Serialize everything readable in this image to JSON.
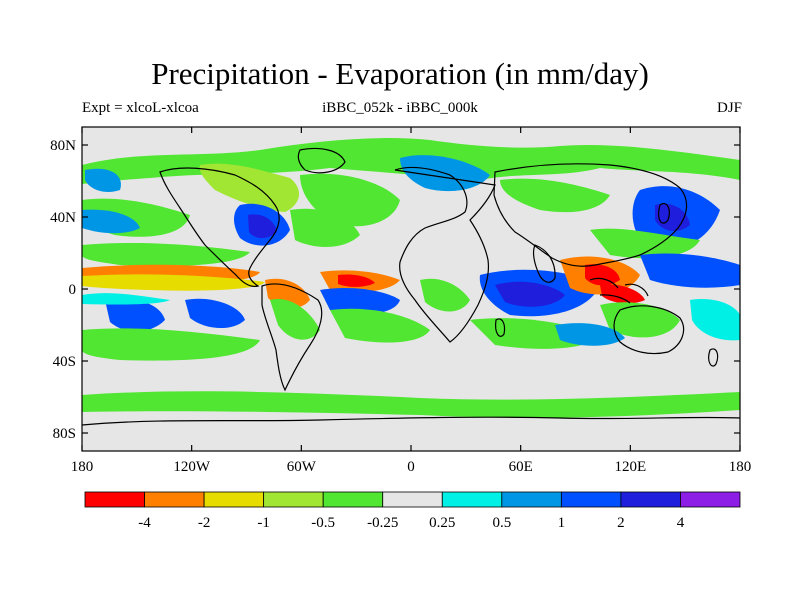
{
  "title": "Precipitation - Evaporation (in mm/day)",
  "subtitle_left": "Expt = xlcoL-xlcoa",
  "subtitle_center": "iBBC_052k - iBBC_000k",
  "subtitle_right": "DJF",
  "lat_ticks": [
    {
      "value": 80,
      "label": "80N"
    },
    {
      "value": 40,
      "label": "40N"
    },
    {
      "value": 0,
      "label": "0"
    },
    {
      "value": -40,
      "label": "40S"
    },
    {
      "value": -80,
      "label": "80S"
    }
  ],
  "lon_ticks": [
    {
      "value": -180,
      "label": "180"
    },
    {
      "value": -120,
      "label": "120W"
    },
    {
      "value": -60,
      "label": "60W"
    },
    {
      "value": 0,
      "label": "0"
    },
    {
      "value": 60,
      "label": "60E"
    },
    {
      "value": 120,
      "label": "120E"
    },
    {
      "value": 180,
      "label": "180"
    }
  ],
  "lat_range": [
    -90,
    90
  ],
  "lon_range": [
    -180,
    180
  ],
  "colorbar": {
    "colors": [
      "#ff0000",
      "#ff8000",
      "#e6dc00",
      "#a0e632",
      "#50e632",
      "#e6e6e6",
      "#00f0e6",
      "#0096e6",
      "#0050ff",
      "#1e1edc",
      "#8c1ee6"
    ],
    "labels": [
      "-4",
      "-2",
      "-1",
      "-0.5",
      "-0.25",
      "0.25",
      "0.5",
      "1",
      "2",
      "4"
    ]
  },
  "background_color": "#e6e6e6"
}
